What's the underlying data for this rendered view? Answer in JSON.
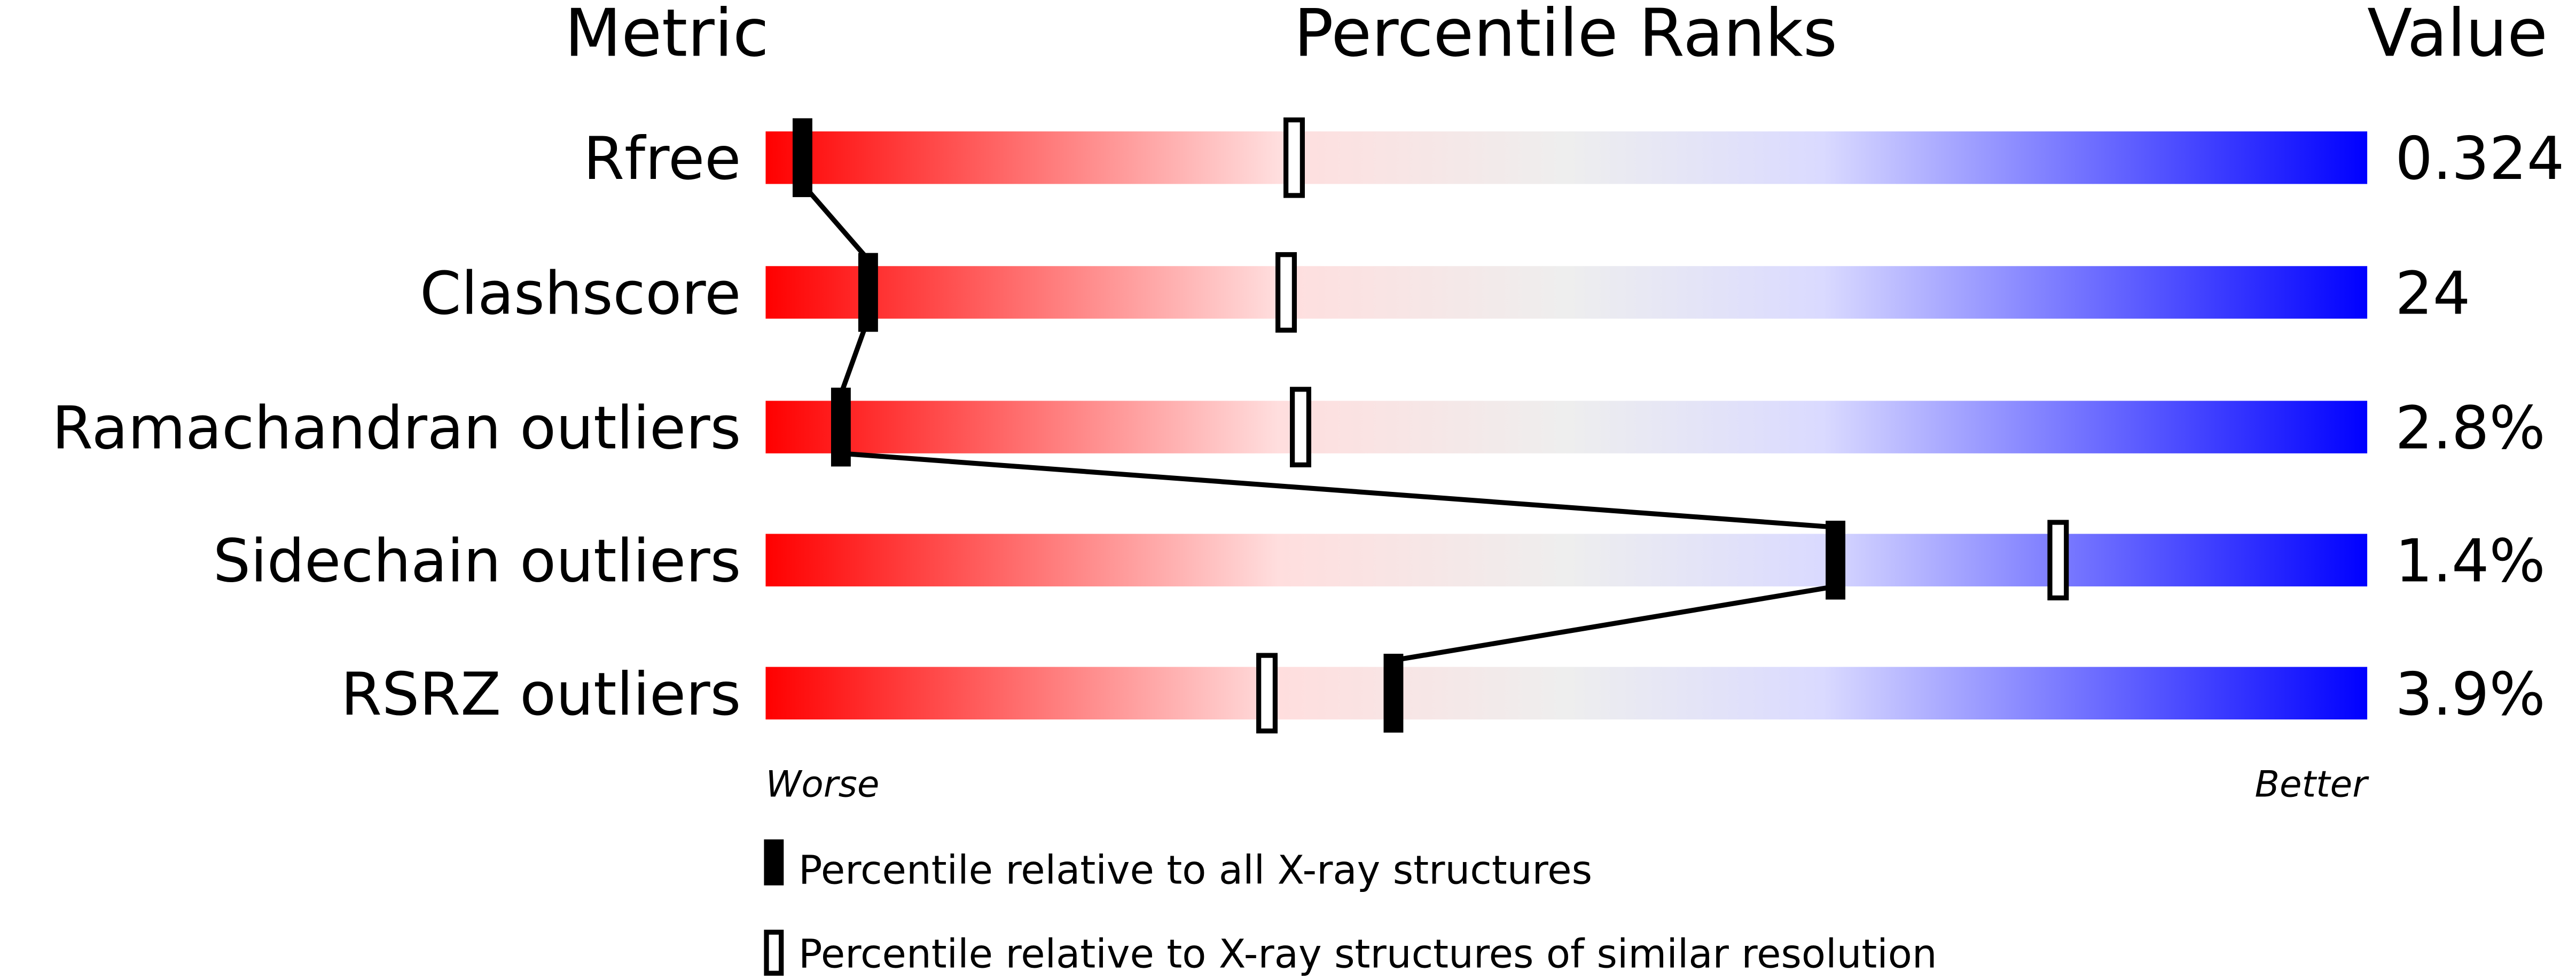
{
  "chart_data": {
    "type": "bar",
    "headers": {
      "metric": "Metric",
      "ranks": "Percentile Ranks",
      "value": "Value"
    },
    "xlim": [
      0,
      100
    ],
    "rows": [
      {
        "metric": "Rfree",
        "value": "0.324",
        "percentile_all": 2.3,
        "percentile_similar": 33
      },
      {
        "metric": "Clashscore",
        "value": "24",
        "percentile_all": 6.4,
        "percentile_similar": 32.5
      },
      {
        "metric": "Ramachandran outliers",
        "value": "2.8%",
        "percentile_all": 4.7,
        "percentile_similar": 33.4
      },
      {
        "metric": "Sidechain outliers",
        "value": "1.4%",
        "percentile_all": 66.8,
        "percentile_similar": 80.7
      },
      {
        "metric": "RSRZ outliers",
        "value": "3.9%",
        "percentile_all": 39.2,
        "percentile_similar": 31.3
      }
    ],
    "axis_labels": {
      "left": "Worse",
      "right": "Better"
    },
    "legend": {
      "all": "Percentile relative to all X-ray structures",
      "similar": "Percentile relative to X-ray structures of similar resolution"
    },
    "colors": {
      "worse": "#ff0000",
      "middle": "#eeeeee",
      "better": "#0000ff",
      "marker": "#000000"
    }
  }
}
